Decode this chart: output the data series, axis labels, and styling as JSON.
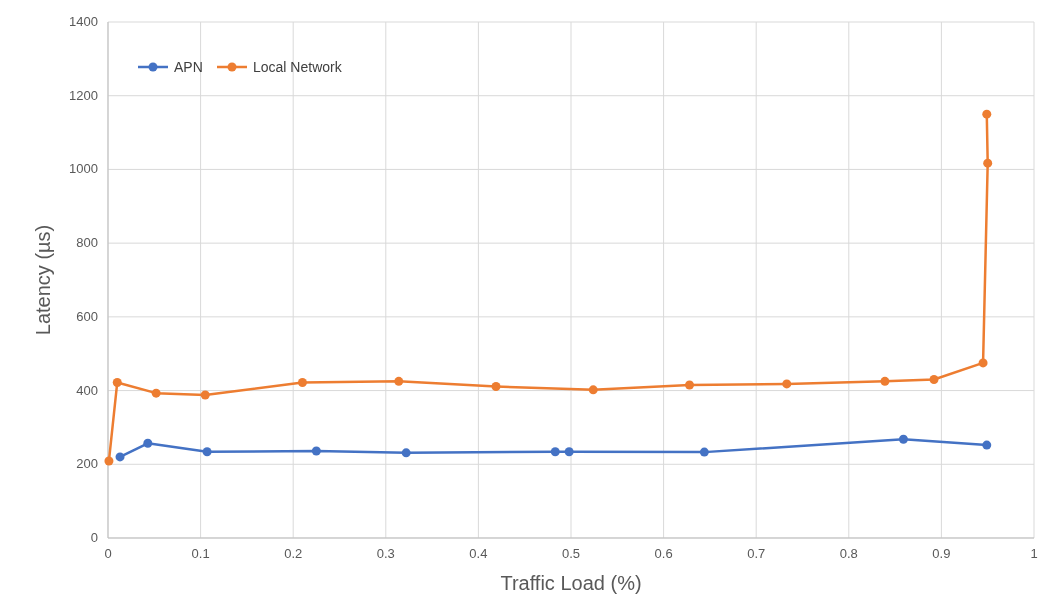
{
  "chart_data": {
    "type": "line",
    "xlabel": "Traffic Load (%)",
    "ylabel": "Latency (µs)",
    "xlim": [
      0,
      1
    ],
    "xticks": [
      0,
      0.1,
      0.2,
      0.3,
      0.4,
      0.5,
      0.6,
      0.7,
      0.8,
      0.9,
      1
    ],
    "ylim": [
      0,
      1400
    ],
    "yticks": [
      0,
      200,
      400,
      600,
      800,
      1000,
      1200,
      1400
    ],
    "grid": true,
    "legend": "top left",
    "marker": "circle",
    "line_style": "solid",
    "series": [
      {
        "name": "APN",
        "color": "#4472c4",
        "x": [
          0.013,
          0.043,
          0.107,
          0.225,
          0.322,
          0.483,
          0.498,
          0.644,
          0.859,
          0.949
        ],
        "values": [
          220,
          257,
          234,
          236,
          231,
          234,
          234,
          233,
          268,
          252
        ]
      },
      {
        "name": "Local Network",
        "color": "#ed7d31",
        "x": [
          0.001,
          0.01,
          0.052,
          0.105,
          0.21,
          0.314,
          0.419,
          0.524,
          0.628,
          0.733,
          0.839,
          0.892,
          0.945,
          0.95,
          0.949
        ],
        "values": [
          209,
          422,
          393,
          388,
          422,
          425,
          411,
          402,
          415,
          418,
          425,
          430,
          475,
          1017,
          1150
        ]
      }
    ]
  }
}
